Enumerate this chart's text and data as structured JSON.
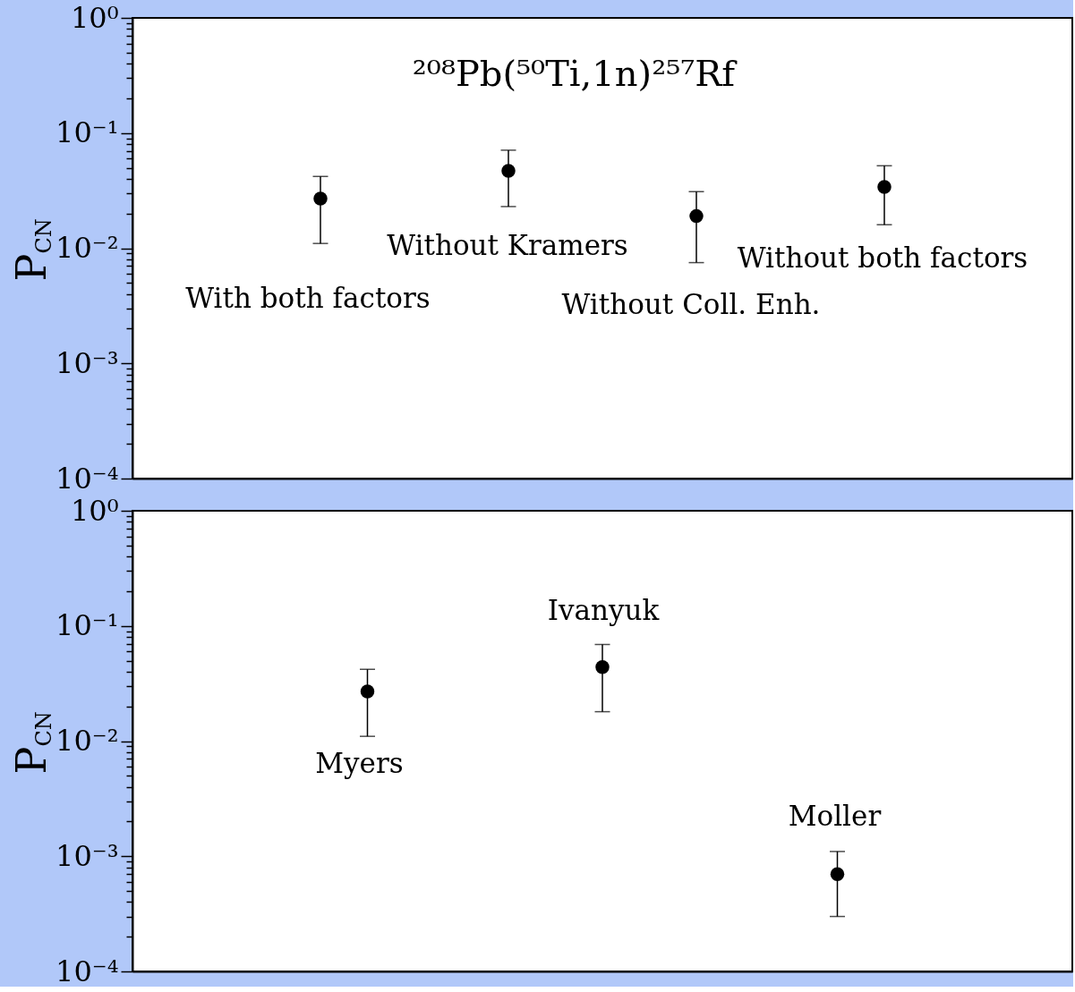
{
  "chart_data": [
    {
      "type": "scatter",
      "title": "²⁰⁸Pb(⁵⁰Ti,1n)²⁵⁷Rf",
      "ylabel": "P$_{CN}$",
      "categories": [
        null,
        null,
        null,
        null
      ],
      "series": [
        {
          "color": "#000000",
          "values": [
            0.027,
            0.047,
            0.019,
            0.034
          ],
          "errors": [
            [
              0.011,
              0.042
            ],
            [
              0.023,
              0.071
            ],
            [
              0.0075,
              0.031
            ],
            [
              0.016,
              0.052
            ]
          ]
        }
      ],
      "ylim": [
        0.0001,
        1
      ],
      "log": true,
      "marker": "circle",
      "tick_labels": "y",
      "yticks": [
        {
          "value": 1,
          "label": "10⁰"
        },
        {
          "value": 0.1,
          "label": "10⁻¹"
        },
        {
          "value": 0.01,
          "label": "10⁻²"
        },
        {
          "value": 0.001,
          "label": "10⁻³"
        },
        {
          "value": 0.0001,
          "label": "10⁻⁴"
        },
        {
          "value": 0.9,
          "label": null
        },
        {
          "value": 0.8,
          "label": null
        },
        {
          "value": 0.7,
          "label": null
        },
        {
          "value": 0.6,
          "label": null
        },
        {
          "value": 0.5,
          "label": null
        },
        {
          "value": 0.4,
          "label": null
        },
        {
          "value": 0.3,
          "label": null
        },
        {
          "value": 0.2,
          "label": null
        },
        {
          "value": 0.09,
          "label": null
        },
        {
          "value": 0.08,
          "label": null
        },
        {
          "value": 0.07,
          "label": null
        },
        {
          "value": 0.06,
          "label": null
        },
        {
          "value": 0.05,
          "label": null
        },
        {
          "value": 0.04,
          "label": null
        },
        {
          "value": 0.03,
          "label": null
        },
        {
          "value": 0.02,
          "label": null
        },
        {
          "value": 0.009,
          "label": null
        },
        {
          "value": 0.008,
          "label": null
        },
        {
          "value": 0.007,
          "label": null
        },
        {
          "value": 0.006,
          "label": null
        },
        {
          "value": 0.005,
          "label": null
        },
        {
          "value": 0.004,
          "label": null
        },
        {
          "value": 0.003,
          "label": null
        },
        {
          "value": 0.002,
          "label": null
        },
        {
          "value": 0.0009,
          "label": null
        },
        {
          "value": 0.0008,
          "label": null
        },
        {
          "value": 0.0007,
          "label": null
        },
        {
          "value": 0.0006,
          "label": null
        },
        {
          "value": 0.0005,
          "label": null
        },
        {
          "value": 0.0004,
          "label": null
        },
        {
          "value": 0.0003,
          "label": null
        },
        {
          "value": 0.0002,
          "label": null
        }
      ],
      "annotations": [
        "With both factors",
        "Without Kramers",
        "Without Coll. Enh.",
        "Without both factors"
      ]
    },
    {
      "type": "scatter",
      "ylabel": "P$_{CN}$",
      "categories": [
        null,
        null,
        null
      ],
      "series": [
        {
          "color": "#000000",
          "values": [
            0.027,
            0.044,
            0.0007
          ],
          "errors": [
            [
              0.011,
              0.042
            ],
            [
              0.018,
              0.069
            ],
            [
              0.0003,
              0.0011
            ]
          ]
        }
      ],
      "ylim": [
        0.0001,
        1
      ],
      "log": true,
      "marker": "circle",
      "tick_labels": "y",
      "yticks": [
        {
          "value": 1,
          "label": "10⁰"
        },
        {
          "value": 0.1,
          "label": "10⁻¹"
        },
        {
          "value": 0.01,
          "label": "10⁻²"
        },
        {
          "value": 0.001,
          "label": "10⁻³"
        },
        {
          "value": 0.0001,
          "label": "10⁻⁴"
        },
        {
          "value": 0.9,
          "label": null
        },
        {
          "value": 0.8,
          "label": null
        },
        {
          "value": 0.7,
          "label": null
        },
        {
          "value": 0.6,
          "label": null
        },
        {
          "value": 0.5,
          "label": null
        },
        {
          "value": 0.4,
          "label": null
        },
        {
          "value": 0.3,
          "label": null
        },
        {
          "value": 0.2,
          "label": null
        },
        {
          "value": 0.09,
          "label": null
        },
        {
          "value": 0.08,
          "label": null
        },
        {
          "value": 0.07,
          "label": null
        },
        {
          "value": 0.06,
          "label": null
        },
        {
          "value": 0.05,
          "label": null
        },
        {
          "value": 0.04,
          "label": null
        },
        {
          "value": 0.03,
          "label": null
        },
        {
          "value": 0.02,
          "label": null
        },
        {
          "value": 0.009,
          "label": null
        },
        {
          "value": 0.008,
          "label": null
        },
        {
          "value": 0.007,
          "label": null
        },
        {
          "value": 0.006,
          "label": null
        },
        {
          "value": 0.005,
          "label": null
        },
        {
          "value": 0.004,
          "label": null
        },
        {
          "value": 0.003,
          "label": null
        },
        {
          "value": 0.002,
          "label": null
        },
        {
          "value": 0.0009,
          "label": null
        },
        {
          "value": 0.0008,
          "label": null
        },
        {
          "value": 0.0007,
          "label": null
        },
        {
          "value": 0.0006,
          "label": null
        },
        {
          "value": 0.0005,
          "label": null
        },
        {
          "value": 0.0004,
          "label": null
        },
        {
          "value": 0.0003,
          "label": null
        },
        {
          "value": 0.0002,
          "label": null
        }
      ],
      "annotations": [
        "Myers",
        "Ivanyuk",
        "Moller"
      ]
    }
  ]
}
